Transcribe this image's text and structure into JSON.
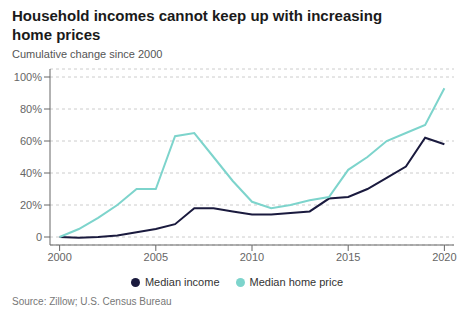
{
  "chart_data": {
    "type": "line",
    "title": "Household incomes cannot keep up with increasing\nhome prices",
    "subtitle": "Cumulative change since 2000",
    "source": "Source:  Zillow; U.S. Census Bureau",
    "x": [
      2000,
      2001,
      2002,
      2003,
      2004,
      2005,
      2006,
      2007,
      2008,
      2009,
      2010,
      2011,
      2012,
      2013,
      2014,
      2015,
      2016,
      2017,
      2018,
      2019,
      2020
    ],
    "series": [
      {
        "name": "Median income",
        "color": "#1a1a3e",
        "values": [
          0,
          -0.5,
          0,
          1,
          3,
          5,
          8,
          18,
          18,
          16,
          14,
          14,
          15,
          16,
          24,
          25,
          30,
          37,
          44,
          62,
          58
        ]
      },
      {
        "name": "Median home price",
        "color": "#7dd4cc",
        "values": [
          0,
          5,
          12,
          20,
          30,
          30,
          63,
          65,
          50,
          35,
          22,
          18,
          20,
          23,
          25,
          42,
          50,
          60,
          65,
          70,
          93
        ]
      }
    ],
    "xlim": [
      1999.5,
      2020.5
    ],
    "ylim": [
      -5,
      105
    ],
    "xticks": [
      2000,
      2005,
      2010,
      2015,
      2020
    ],
    "yticks": [
      0,
      {
        "value": 20,
        "label": "20%"
      },
      {
        "value": 40,
        "label": "40%"
      },
      {
        "value": 60,
        "label": "60%"
      },
      {
        "value": 80,
        "label": "80%"
      },
      {
        "value": 100,
        "label": "100%"
      }
    ],
    "grid": true,
    "legend": "bottom"
  }
}
